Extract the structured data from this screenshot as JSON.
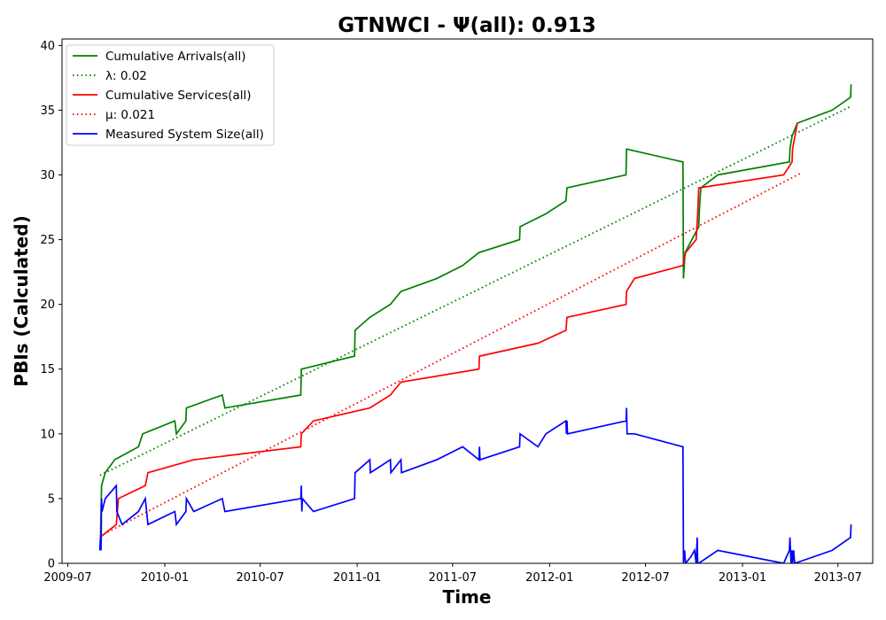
{
  "chart_data": {
    "type": "line",
    "title": "GTNWCI -  Ψ(all): 0.913",
    "xlabel": "Time",
    "ylabel": "PBIs (Calculated)",
    "xlim": [
      "2009-06-20",
      "2013-09-05"
    ],
    "ylim": [
      0,
      40.5
    ],
    "x_ticks": [
      "2009-07",
      "2010-01",
      "2010-07",
      "2011-01",
      "2011-07",
      "2012-01",
      "2012-07",
      "2013-01",
      "2013-07"
    ],
    "y_ticks": [
      0,
      5,
      10,
      15,
      20,
      25,
      30,
      35,
      40
    ],
    "grid": false,
    "legend_position": "top-left",
    "series": [
      {
        "name": "Cumulative Arrivals(all)",
        "color": "#008000",
        "style": "solid",
        "points": [
          [
            "2009-08-31",
            1
          ],
          [
            "2009-09-01",
            2
          ],
          [
            "2009-09-03",
            6
          ],
          [
            "2009-09-10",
            7
          ],
          [
            "2009-09-28",
            8
          ],
          [
            "2009-11-12",
            9
          ],
          [
            "2009-11-20",
            10
          ],
          [
            "2010-01-20",
            11
          ],
          [
            "2010-01-23",
            10
          ],
          [
            "2010-02-10",
            11
          ],
          [
            "2010-02-11",
            12
          ],
          [
            "2010-04-20",
            13
          ],
          [
            "2010-04-25",
            12
          ],
          [
            "2010-09-16",
            13
          ],
          [
            "2010-09-17",
            15
          ],
          [
            "2010-12-27",
            16
          ],
          [
            "2010-12-28",
            18
          ],
          [
            "2011-01-25",
            19
          ],
          [
            "2011-03-05",
            20
          ],
          [
            "2011-03-25",
            21
          ],
          [
            "2011-06-01",
            22
          ],
          [
            "2011-07-20",
            23
          ],
          [
            "2011-08-20",
            24
          ],
          [
            "2011-11-05",
            25
          ],
          [
            "2011-11-06",
            26
          ],
          [
            "2011-12-25",
            27
          ],
          [
            "2012-02-01",
            28
          ],
          [
            "2012-02-03",
            29
          ],
          [
            "2012-05-25",
            30
          ],
          [
            "2012-05-26",
            32
          ],
          [
            "2012-09-10",
            31
          ],
          [
            "2012-09-11",
            22
          ],
          [
            "2012-09-14",
            24
          ],
          [
            "2012-10-10",
            26
          ],
          [
            "2012-10-12",
            28
          ],
          [
            "2012-10-14",
            29
          ],
          [
            "2012-11-15",
            30
          ],
          [
            "2013-03-31",
            31
          ],
          [
            "2013-04-01",
            32
          ],
          [
            "2013-04-05",
            33
          ],
          [
            "2013-04-15",
            34
          ],
          [
            "2013-06-20",
            35
          ],
          [
            "2013-07-25",
            36
          ],
          [
            "2013-07-26",
            37
          ]
        ]
      },
      {
        "name": "λ: 0.02",
        "color": "#008000",
        "style": "dotted",
        "points": [
          [
            "2009-08-31",
            6.8
          ],
          [
            "2013-07-26",
            35.3
          ]
        ]
      },
      {
        "name": "Cumulative Services(all)",
        "color": "#ff0000",
        "style": "solid",
        "points": [
          [
            "2009-08-31",
            2
          ],
          [
            "2009-10-01",
            3
          ],
          [
            "2009-10-05",
            5
          ],
          [
            "2009-11-25",
            6
          ],
          [
            "2009-11-30",
            7
          ],
          [
            "2010-02-25",
            8
          ],
          [
            "2010-09-16",
            9
          ],
          [
            "2010-09-17",
            10
          ],
          [
            "2010-10-10",
            11
          ],
          [
            "2011-01-25",
            12
          ],
          [
            "2011-03-05",
            13
          ],
          [
            "2011-03-25",
            14
          ],
          [
            "2011-08-20",
            15
          ],
          [
            "2011-08-21",
            16
          ],
          [
            "2011-12-10",
            17
          ],
          [
            "2012-02-01",
            18
          ],
          [
            "2012-02-03",
            19
          ],
          [
            "2012-05-25",
            20
          ],
          [
            "2012-05-26",
            21
          ],
          [
            "2012-06-10",
            22
          ],
          [
            "2012-09-10",
            23
          ],
          [
            "2012-09-12",
            23.5
          ],
          [
            "2012-09-15",
            24
          ],
          [
            "2012-10-05",
            25
          ],
          [
            "2012-10-08",
            27
          ],
          [
            "2012-10-10",
            29
          ],
          [
            "2013-03-20",
            30
          ],
          [
            "2013-04-05",
            31
          ],
          [
            "2013-04-06",
            32
          ],
          [
            "2013-04-15",
            34
          ]
        ]
      },
      {
        "name": "μ: 0.021",
        "color": "#ff0000",
        "style": "dotted",
        "points": [
          [
            "2009-08-31",
            2.1
          ],
          [
            "2013-04-20",
            30.1
          ]
        ]
      },
      {
        "name": "Measured System Size(all)",
        "color": "#0000ff",
        "style": "solid",
        "points": [
          [
            "2009-08-31",
            1
          ],
          [
            "2009-09-01",
            2
          ],
          [
            "2009-09-02",
            1
          ],
          [
            "2009-09-03",
            5
          ],
          [
            "2009-09-04",
            4
          ],
          [
            "2009-09-10",
            5
          ],
          [
            "2009-10-01",
            6
          ],
          [
            "2009-10-02",
            4
          ],
          [
            "2009-10-12",
            3
          ],
          [
            "2009-11-12",
            4
          ],
          [
            "2009-11-25",
            5
          ],
          [
            "2009-11-30",
            3
          ],
          [
            "2010-01-20",
            4
          ],
          [
            "2010-01-23",
            3
          ],
          [
            "2010-02-10",
            4
          ],
          [
            "2010-02-11",
            5
          ],
          [
            "2010-02-25",
            4
          ],
          [
            "2010-04-20",
            5
          ],
          [
            "2010-04-25",
            4
          ],
          [
            "2010-09-16",
            5
          ],
          [
            "2010-09-17",
            6
          ],
          [
            "2010-09-18",
            4
          ],
          [
            "2010-09-19",
            5
          ],
          [
            "2010-10-10",
            4
          ],
          [
            "2010-12-27",
            5
          ],
          [
            "2010-12-28",
            7
          ],
          [
            "2011-01-25",
            8
          ],
          [
            "2011-01-26",
            7
          ],
          [
            "2011-03-05",
            8
          ],
          [
            "2011-03-06",
            7
          ],
          [
            "2011-03-25",
            8
          ],
          [
            "2011-03-26",
            7
          ],
          [
            "2011-06-01",
            8
          ],
          [
            "2011-07-20",
            9
          ],
          [
            "2011-08-20",
            8
          ],
          [
            "2011-08-21",
            9
          ],
          [
            "2011-08-22",
            8
          ],
          [
            "2011-11-05",
            9
          ],
          [
            "2011-11-06",
            10
          ],
          [
            "2011-12-10",
            9
          ],
          [
            "2011-12-25",
            10
          ],
          [
            "2012-02-01",
            11
          ],
          [
            "2012-02-02",
            10
          ],
          [
            "2012-02-03",
            11
          ],
          [
            "2012-02-04",
            10
          ],
          [
            "2012-05-25",
            11
          ],
          [
            "2012-05-26",
            12
          ],
          [
            "2012-05-27",
            10
          ],
          [
            "2012-06-10",
            10
          ],
          [
            "2012-09-10",
            9
          ],
          [
            "2012-09-11",
            0
          ],
          [
            "2012-09-13",
            1
          ],
          [
            "2012-09-15",
            0
          ],
          [
            "2012-09-25",
            0.5
          ],
          [
            "2012-10-02",
            1
          ],
          [
            "2012-10-05",
            0
          ],
          [
            "2012-10-07",
            2
          ],
          [
            "2012-10-08",
            0
          ],
          [
            "2012-10-10",
            0
          ],
          [
            "2012-11-15",
            1
          ],
          [
            "2013-03-20",
            0
          ],
          [
            "2013-03-31",
            1
          ],
          [
            "2013-04-01",
            2
          ],
          [
            "2013-04-03",
            0
          ],
          [
            "2013-04-05",
            1
          ],
          [
            "2013-04-06",
            0
          ],
          [
            "2013-04-08",
            1
          ],
          [
            "2013-04-10",
            0
          ],
          [
            "2013-06-20",
            1
          ],
          [
            "2013-07-25",
            2
          ],
          [
            "2013-07-26",
            3
          ]
        ]
      }
    ]
  }
}
